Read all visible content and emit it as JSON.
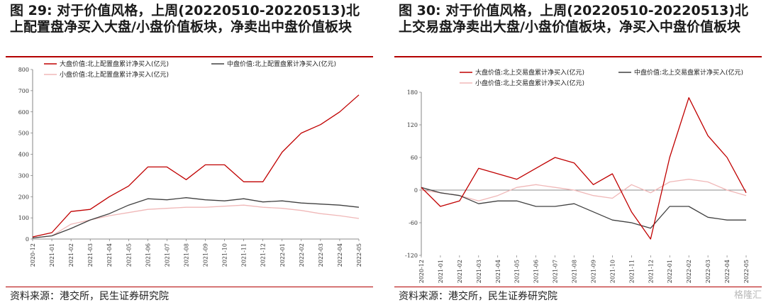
{
  "left": {
    "title": "图 29: 对于价值风格，上周(20220510-20220513)北上配置盘净买入大盘/小盘价值板块，净卖出中盘价值板块",
    "source": "资料来源：港交所，民生证券研究院"
  },
  "right": {
    "title": "图 30: 对于价值风格，上周(20220510-20220513)北上交易盘净卖出大盘/小盘价值板块，净买入中盘价值板块",
    "source": "资料来源：港交所，民生证券研究院"
  },
  "watermark": "格隆汇",
  "chart_data": [
    {
      "type": "line",
      "title": "",
      "xlabel": "",
      "ylabel": "",
      "ylim": [
        0,
        800
      ],
      "yticks": [
        0,
        100,
        200,
        300,
        400,
        500,
        600,
        700,
        800
      ],
      "grid": false,
      "legend_position": "top",
      "x": [
        "2020-12",
        "2021-01",
        "2021-02",
        "2021-03",
        "2021-04",
        "2021-05",
        "2021-06",
        "2021-07",
        "2021-08",
        "2021-09",
        "2021-10",
        "2021-11",
        "2021-12",
        "2022-01",
        "2022-02",
        "2022-03",
        "2022-04",
        "2022-05"
      ],
      "series": [
        {
          "name": "大盘价值:北上配置盘累计净买入(亿元)",
          "color": "#c00000",
          "values": [
            10,
            30,
            130,
            140,
            200,
            250,
            340,
            340,
            280,
            350,
            350,
            270,
            270,
            410,
            500,
            540,
            600,
            680
          ]
        },
        {
          "name": "中盘价值:北上配置盘累计净买入(亿元)",
          "color": "#404040",
          "values": [
            5,
            15,
            50,
            90,
            120,
            160,
            190,
            185,
            195,
            185,
            180,
            190,
            175,
            180,
            170,
            165,
            160,
            150
          ]
        },
        {
          "name": "小盘价值:北上配置盘累计净买入(亿元)",
          "color": "#f0b8b8",
          "values": [
            5,
            15,
            70,
            90,
            110,
            125,
            140,
            145,
            150,
            150,
            155,
            160,
            150,
            145,
            135,
            120,
            110,
            97
          ]
        }
      ]
    },
    {
      "type": "line",
      "title": "",
      "xlabel": "",
      "ylabel": "",
      "ylim": [
        -120,
        180
      ],
      "yticks": [
        -120,
        -60,
        0,
        60,
        120,
        180
      ],
      "grid": false,
      "legend_position": "top",
      "x": [
        "2020-12",
        "2021-01",
        "2021-02",
        "2021-03",
        "2021-04",
        "2021-05",
        "2021-06",
        "2021-07",
        "2021-08",
        "2021-09",
        "2021-10",
        "2021-11",
        "2021-12",
        "2022-01",
        "2022-02",
        "2022-03",
        "2022-04",
        "2022-05"
      ],
      "series": [
        {
          "name": "大盘价值:北上交易盘累计净买入(亿元)",
          "color": "#c00000",
          "values": [
            5,
            -30,
            -20,
            40,
            30,
            20,
            40,
            60,
            50,
            10,
            30,
            -40,
            -90,
            60,
            170,
            100,
            60,
            -5
          ]
        },
        {
          "name": "中盘价值:北上交易盘累计净买入(亿元)",
          "color": "#404040",
          "values": [
            5,
            -5,
            -10,
            -25,
            -20,
            -20,
            -30,
            -30,
            -25,
            -40,
            -55,
            -60,
            -70,
            -30,
            -30,
            -50,
            -55,
            -55
          ]
        },
        {
          "name": "小盘价值:北上交易盘累计净买入(亿元)",
          "color": "#f0b8b8",
          "values": [
            0,
            -5,
            -10,
            -20,
            -10,
            5,
            10,
            5,
            0,
            -10,
            -15,
            10,
            -5,
            15,
            20,
            15,
            0,
            -10
          ]
        }
      ]
    }
  ]
}
